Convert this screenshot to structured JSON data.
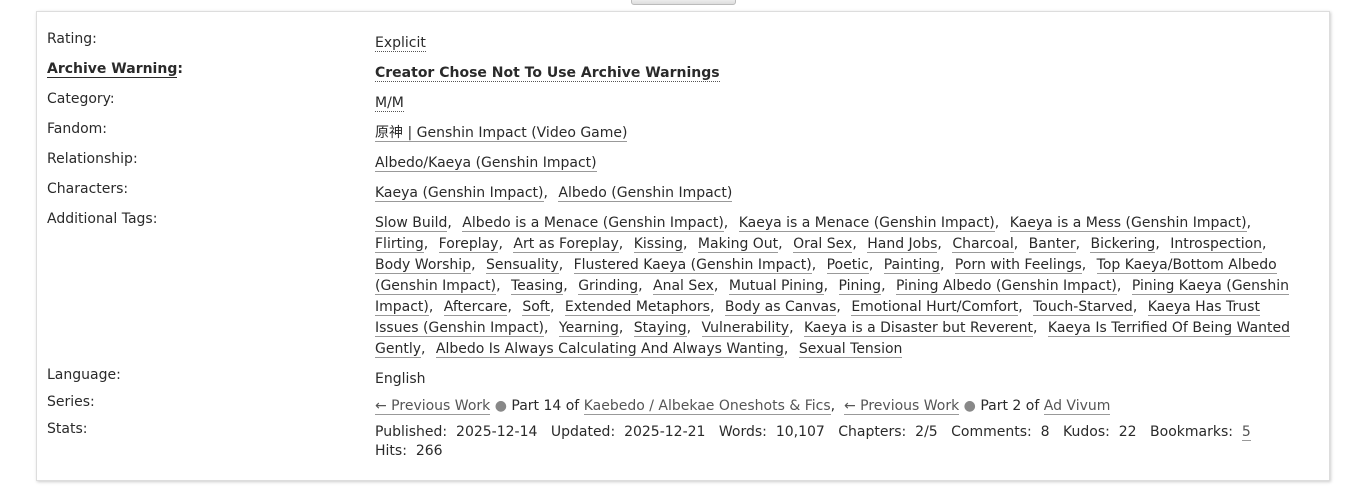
{
  "meta": {
    "rating": {
      "label": "Rating:",
      "value": "Explicit"
    },
    "warning": {
      "label": "Archive Warning",
      "colon": ":",
      "value": "Creator Chose Not To Use Archive Warnings"
    },
    "category": {
      "label": "Category:",
      "value": "M/M"
    },
    "fandom": {
      "label": "Fandom:",
      "value": "原神 | Genshin Impact (Video Game)"
    },
    "relationship": {
      "label": "Relationship:",
      "value": "Albedo/Kaeya (Genshin Impact)"
    },
    "characters": {
      "label": "Characters:",
      "values": [
        "Kaeya (Genshin Impact)",
        "Albedo (Genshin Impact)"
      ]
    },
    "additional_tags": {
      "label": "Additional Tags:",
      "values": [
        "Slow Build",
        "Albedo is a Menace (Genshin Impact)",
        "Kaeya is a Menace (Genshin Impact)",
        "Kaeya is a Mess (Genshin Impact)",
        "Flirting",
        "Foreplay",
        "Art as Foreplay",
        "Kissing",
        "Making Out",
        "Oral Sex",
        "Hand Jobs",
        "Charcoal",
        "Banter",
        "Bickering",
        "Introspection",
        "Body Worship",
        "Sensuality",
        "Flustered Kaeya (Genshin Impact)",
        "Poetic",
        "Painting",
        "Porn with Feelings",
        "Top Kaeya/Bottom Albedo (Genshin Impact)",
        "Teasing",
        "Grinding",
        "Anal Sex",
        "Mutual Pining",
        "Pining",
        "Pining Albedo (Genshin Impact)",
        "Pining Kaeya (Genshin Impact)",
        "Aftercare",
        "Soft",
        "Extended Metaphors",
        "Body as Canvas",
        "Emotional Hurt/Comfort",
        "Touch-Starved",
        "Kaeya Has Trust Issues (Genshin Impact)",
        "Yearning",
        "Staying",
        "Vulnerability",
        "Kaeya is a Disaster but Reverent",
        "Kaeya Is Terrified Of Being Wanted Gently",
        "Albedo Is Always Calculating And Always Wanting",
        "Sexual Tension"
      ]
    },
    "language": {
      "label": "Language:",
      "value": "English"
    },
    "series": {
      "label": "Series:",
      "items": [
        {
          "prev": "← Previous Work",
          "part": "Part 14 of",
          "name": "Kaebedo / Albekae Oneshots & Fics"
        },
        {
          "prev": "← Previous Work",
          "part": "Part 2 of",
          "name": "Ad Vivum"
        }
      ]
    },
    "stats": {
      "label": "Stats:",
      "published": {
        "label": "Published:",
        "value": "2025-12-14"
      },
      "updated": {
        "label": "Updated:",
        "value": "2025-12-21"
      },
      "words": {
        "label": "Words:",
        "value": "10,107"
      },
      "chapters": {
        "label": "Chapters:",
        "value": "2/5"
      },
      "comments": {
        "label": "Comments:",
        "value": "8"
      },
      "kudos": {
        "label": "Kudos:",
        "value": "22"
      },
      "bookmarks": {
        "label": "Bookmarks:",
        "value": "5"
      },
      "hits": {
        "label": "Hits:",
        "value": "266"
      }
    }
  }
}
